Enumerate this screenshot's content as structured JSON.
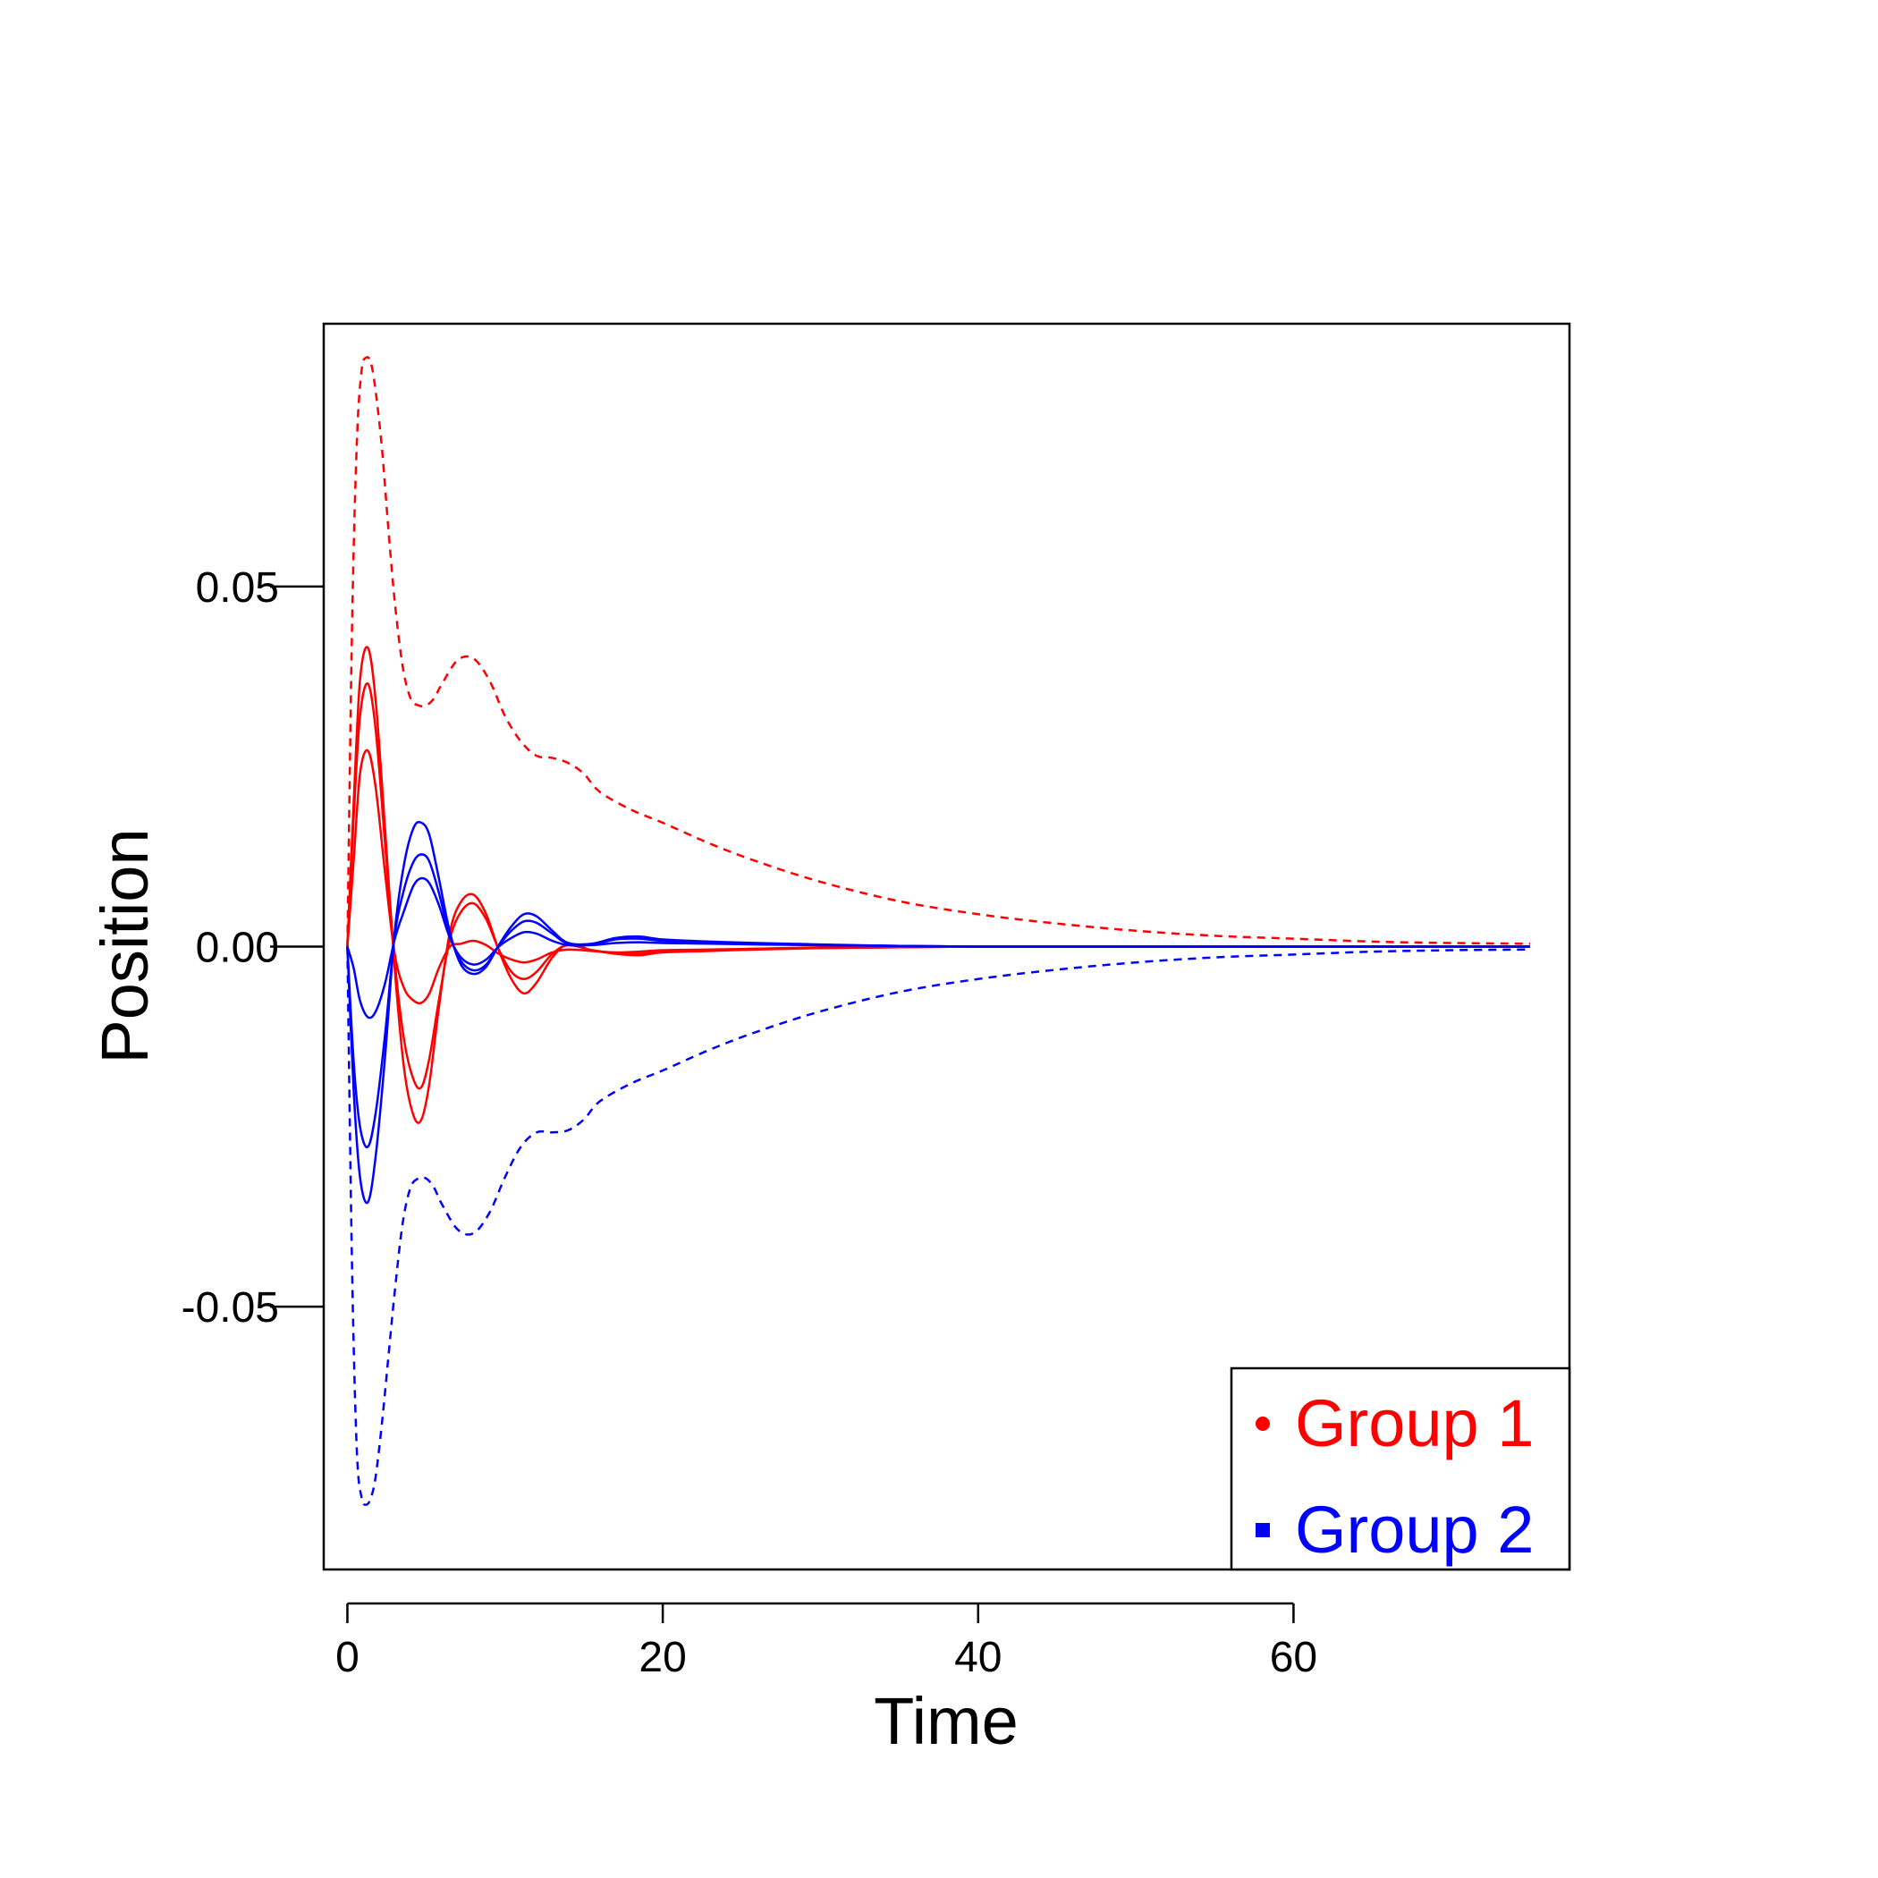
{
  "chart_data": {
    "type": "line",
    "title": "",
    "xlabel": "Time",
    "ylabel": "Position",
    "xlim": [
      -1.5,
      77.5
    ],
    "ylim": [
      -0.0865,
      0.0865
    ],
    "xticks": [
      0,
      20,
      40,
      60
    ],
    "xtick_labels": [
      "0",
      "20",
      "40",
      "60"
    ],
    "yticks": [
      -0.05,
      0.0,
      0.05
    ],
    "ytick_labels": [
      "-0.05",
      "0.00",
      "0.05"
    ],
    "grid": false,
    "legend": {
      "position": "bottom-right",
      "entries": [
        {
          "label": "Group 1",
          "color": "#ff0000",
          "marker": "circle"
        },
        {
          "label": "Group 2",
          "color": "#0000ff",
          "marker": "square"
        }
      ]
    },
    "series": [
      {
        "name": "Group 1 upper band",
        "group": "Group 1",
        "color": "#ff0000",
        "dash": true,
        "x": [
          0,
          0.3,
          0.6,
          0.9,
          1.2,
          1.5,
          1.8,
          2.2,
          2.6,
          3.0,
          3.5,
          4.0,
          4.5,
          5.0,
          5.5,
          6,
          7,
          8,
          9,
          10,
          11,
          12,
          13,
          14,
          15,
          16,
          18,
          20,
          23,
          26,
          30,
          35,
          40,
          45,
          50,
          55,
          60,
          65,
          70,
          75
        ],
        "y": [
          0,
          0.045,
          0.07,
          0.08,
          0.0818,
          0.081,
          0.077,
          0.069,
          0.058,
          0.048,
          0.039,
          0.0345,
          0.0335,
          0.0335,
          0.0345,
          0.0365,
          0.0398,
          0.04,
          0.037,
          0.032,
          0.0285,
          0.0265,
          0.0262,
          0.0255,
          0.024,
          0.0215,
          0.019,
          0.0172,
          0.0143,
          0.0118,
          0.009,
          0.0063,
          0.0045,
          0.0032,
          0.0022,
          0.0015,
          0.0011,
          0.0007,
          0.0005,
          0.0004
        ]
      },
      {
        "name": "Group 2 lower band",
        "group": "Group 2",
        "color": "#0000ff",
        "dash": true,
        "x": [
          0,
          0.3,
          0.6,
          0.9,
          1.2,
          1.5,
          1.8,
          2.2,
          2.6,
          3.0,
          3.5,
          4.0,
          4.5,
          5.0,
          5.5,
          6,
          7,
          8,
          9,
          10,
          11,
          12,
          13,
          14,
          15,
          16,
          18,
          20,
          23,
          26,
          30,
          35,
          40,
          45,
          50,
          55,
          60,
          65,
          70,
          75
        ],
        "y": [
          0,
          -0.045,
          -0.07,
          -0.0765,
          -0.0775,
          -0.0765,
          -0.0735,
          -0.066,
          -0.057,
          -0.048,
          -0.0385,
          -0.0335,
          -0.0322,
          -0.0322,
          -0.0335,
          -0.0358,
          -0.0393,
          -0.0398,
          -0.037,
          -0.032,
          -0.0278,
          -0.0258,
          -0.0258,
          -0.0255,
          -0.024,
          -0.0215,
          -0.019,
          -0.0172,
          -0.0143,
          -0.0118,
          -0.009,
          -0.0063,
          -0.0045,
          -0.0032,
          -0.0022,
          -0.0015,
          -0.0011,
          -0.0007,
          -0.0005,
          -0.0004
        ]
      },
      {
        "name": "Group 1 curve A",
        "group": "Group 1",
        "color": "#ff0000",
        "dash": false,
        "x": [
          0,
          0.4,
          0.8,
          1.3,
          1.8,
          2.4,
          3.0,
          3.6,
          4.2,
          4.7,
          5.2,
          5.8,
          6.5,
          7.2,
          8.0,
          8.8,
          9.6,
          10.4,
          11.2,
          12.0,
          13.0,
          14.0,
          15.5,
          17.0,
          18.5,
          20,
          23,
          26,
          30,
          35,
          40,
          50,
          60,
          75
        ],
        "y": [
          0,
          0.02,
          0.037,
          0.0415,
          0.034,
          0.016,
          -0.003,
          -0.017,
          -0.0235,
          -0.024,
          -0.019,
          -0.0085,
          0.002,
          0.0062,
          0.0072,
          0.0045,
          -0.0005,
          -0.0045,
          -0.0065,
          -0.005,
          -0.0015,
          0.0003,
          -0.0005,
          -0.001,
          -0.0012,
          -0.0008,
          -0.0006,
          -0.0004,
          -0.0002,
          -0.0001,
          0,
          0,
          0,
          0
        ]
      },
      {
        "name": "Group 1 curve B",
        "group": "Group 1",
        "color": "#ff0000",
        "dash": false,
        "x": [
          0,
          0.4,
          0.8,
          1.3,
          1.8,
          2.4,
          3.0,
          3.6,
          4.2,
          4.7,
          5.2,
          5.8,
          6.5,
          7.2,
          8.0,
          8.8,
          9.6,
          10.4,
          11.2,
          12.0,
          13.0,
          14.0,
          15.5,
          17.0,
          18.5,
          20,
          23,
          26,
          30,
          35,
          40,
          50,
          60,
          75
        ],
        "y": [
          0,
          0.018,
          0.032,
          0.0365,
          0.03,
          0.014,
          -0.002,
          -0.013,
          -0.0185,
          -0.0195,
          -0.0155,
          -0.0075,
          0.001,
          0.0048,
          0.006,
          0.0038,
          -0.0004,
          -0.0035,
          -0.0045,
          -0.0035,
          -0.001,
          0.0002,
          -0.0005,
          -0.0009,
          -0.001,
          -0.0007,
          -0.0005,
          -0.0003,
          -0.0002,
          -0.0001,
          0,
          0,
          0,
          0
        ]
      },
      {
        "name": "Group 1 curve C",
        "group": "Group 1",
        "color": "#ff0000",
        "dash": false,
        "x": [
          0,
          0.4,
          0.8,
          1.3,
          1.8,
          2.4,
          3.0,
          3.6,
          4.2,
          4.7,
          5.2,
          5.8,
          6.5,
          7.2,
          8.0,
          8.8,
          9.6,
          10.4,
          11.2,
          12.0,
          13.0,
          14.0,
          15.5,
          17.0,
          18.5,
          20,
          23,
          26,
          30,
          35,
          40,
          50,
          60,
          75
        ],
        "y": [
          0,
          0.012,
          0.024,
          0.0272,
          0.022,
          0.01,
          -0.001,
          -0.0058,
          -0.0075,
          -0.0078,
          -0.0065,
          -0.003,
          0.0,
          0.0004,
          0.0008,
          0.0002,
          -0.001,
          -0.0018,
          -0.0022,
          -0.0018,
          -0.0008,
          -0.0004,
          -0.0006,
          -0.0008,
          -0.0007,
          -0.0005,
          -0.0004,
          -0.0003,
          -0.0001,
          0,
          0,
          0,
          0,
          0
        ]
      },
      {
        "name": "Group 2 curve A",
        "group": "Group 2",
        "color": "#0000ff",
        "dash": false,
        "x": [
          0,
          0.4,
          0.8,
          1.3,
          1.8,
          2.4,
          3.0,
          3.6,
          4.2,
          4.7,
          5.2,
          5.8,
          6.5,
          7.2,
          8.0,
          8.8,
          9.6,
          10.4,
          11.2,
          12.0,
          13.0,
          14.0,
          15.5,
          17.0,
          18.5,
          20,
          23,
          26,
          30,
          35,
          40,
          50,
          60,
          75
        ],
        "y": [
          0,
          -0.02,
          -0.032,
          -0.0355,
          -0.029,
          -0.015,
          0.002,
          0.0115,
          0.0165,
          0.0172,
          0.0155,
          0.0095,
          0.002,
          -0.0025,
          -0.0038,
          -0.0028,
          0.0002,
          0.0028,
          0.0045,
          0.0042,
          0.0022,
          0.0005,
          0.0004,
          0.0012,
          0.0014,
          0.001,
          0.0007,
          0.0005,
          0.0003,
          0.0001,
          0,
          0,
          0,
          0
        ]
      },
      {
        "name": "Group 2 curve B",
        "group": "Group 2",
        "color": "#0000ff",
        "dash": false,
        "x": [
          0,
          0.4,
          0.8,
          1.3,
          1.8,
          2.4,
          3.0,
          3.6,
          4.2,
          4.7,
          5.2,
          5.8,
          6.5,
          7.2,
          8.0,
          8.8,
          9.6,
          10.4,
          11.2,
          12.0,
          13.0,
          14.0,
          15.5,
          17.0,
          18.5,
          20,
          23,
          26,
          30,
          35,
          40,
          50,
          60,
          75
        ],
        "y": [
          0,
          -0.016,
          -0.025,
          -0.0278,
          -0.023,
          -0.012,
          0.0015,
          0.008,
          0.0118,
          0.0128,
          0.0118,
          0.0075,
          0.0015,
          -0.002,
          -0.0033,
          -0.0025,
          0.0001,
          0.0022,
          0.0035,
          0.0033,
          0.0018,
          0.0004,
          0.0003,
          0.001,
          0.0011,
          0.0008,
          0.0006,
          0.0004,
          0.0002,
          0.0001,
          0,
          0,
          0,
          0
        ]
      },
      {
        "name": "Group 2 curve C",
        "group": "Group 2",
        "color": "#0000ff",
        "dash": false,
        "x": [
          0,
          0.4,
          0.8,
          1.3,
          1.8,
          2.4,
          3.0,
          3.6,
          4.2,
          4.7,
          5.2,
          5.8,
          6.5,
          7.2,
          8.0,
          8.8,
          9.6,
          10.4,
          11.2,
          12.0,
          13.0,
          14.0,
          15.5,
          17.0,
          18.5,
          20,
          23,
          26,
          30,
          35,
          40,
          50,
          60,
          75
        ],
        "y": [
          0,
          -0.003,
          -0.0075,
          -0.0098,
          -0.009,
          -0.005,
          0.001,
          0.005,
          0.0085,
          0.0095,
          0.0088,
          0.0058,
          0.0012,
          -0.0015,
          -0.0025,
          -0.0018,
          0.0,
          0.0012,
          0.002,
          0.0018,
          0.0008,
          0.0002,
          0.0002,
          0.0005,
          0.0006,
          0.0005,
          0.0004,
          0.0003,
          0.0002,
          0.0001,
          0,
          0,
          0,
          0
        ]
      }
    ]
  }
}
